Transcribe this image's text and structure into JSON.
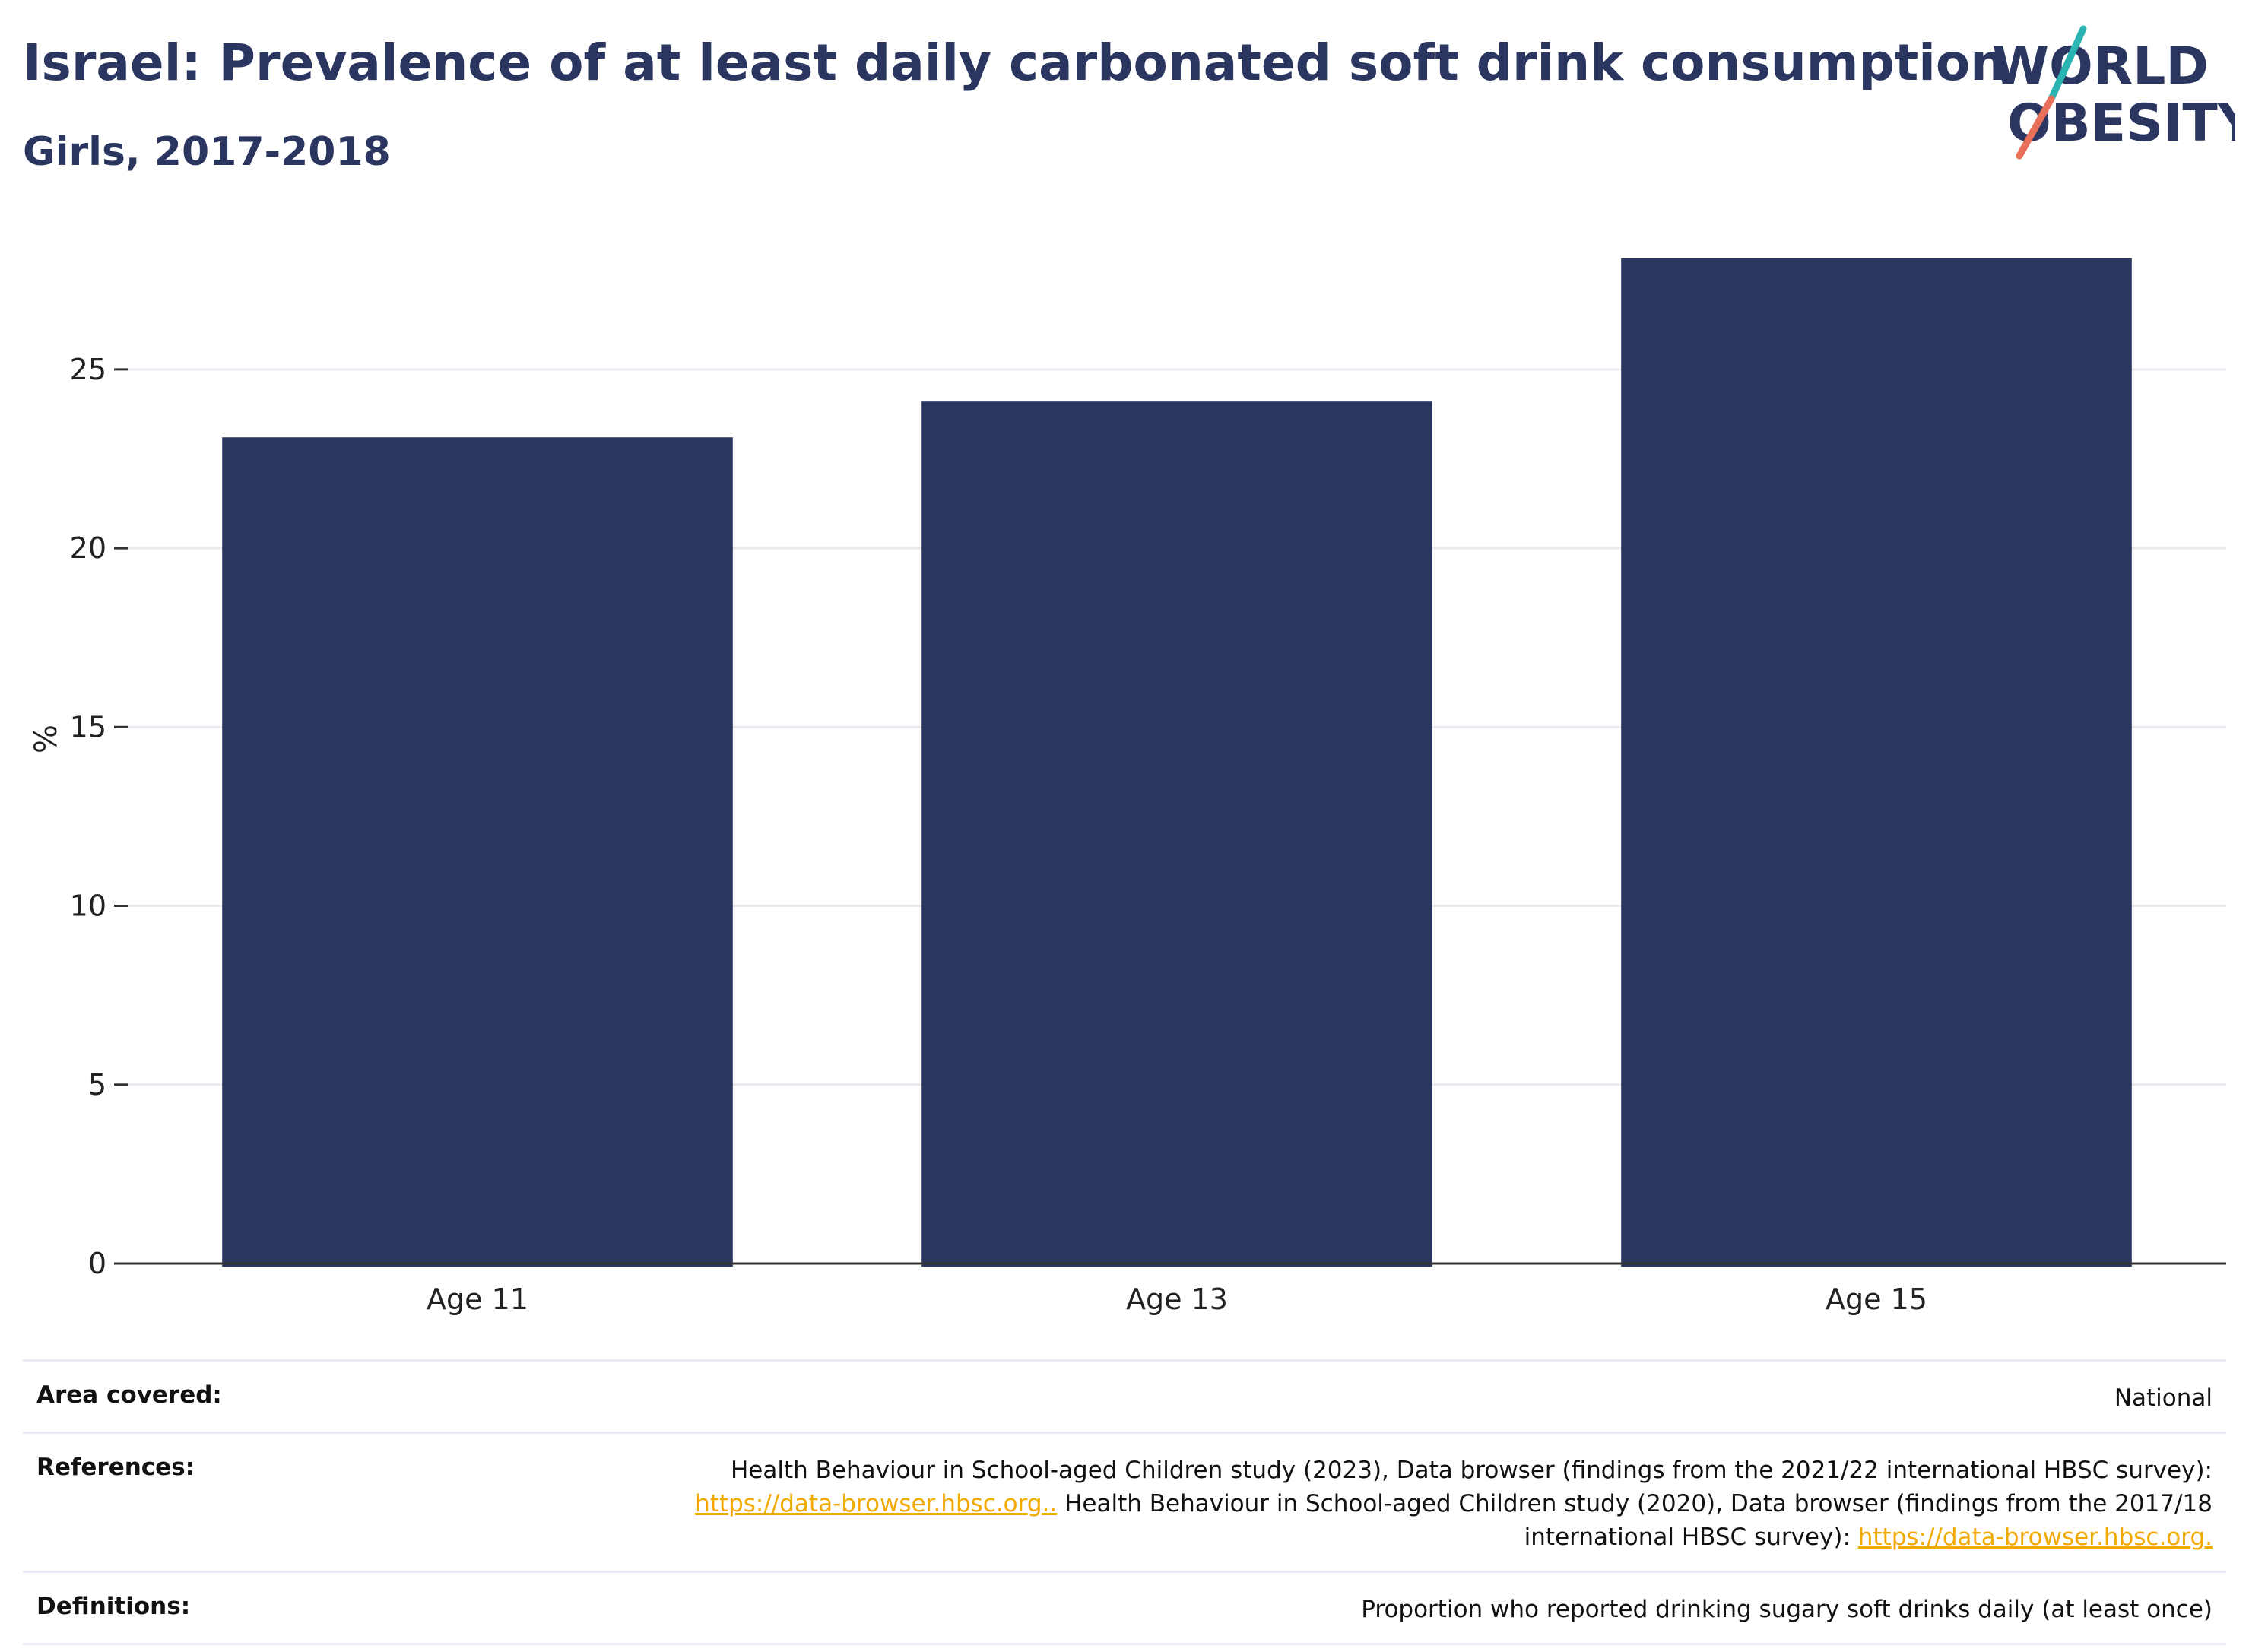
{
  "header": {
    "title": "Israel: Prevalence of at least daily carbonated soft drink consumption",
    "subtitle": "Girls, 2017-2018"
  },
  "logo": {
    "line1": "WORLD",
    "line2": "OBESITY"
  },
  "chart_data": {
    "type": "bar",
    "categories": [
      "Age 11",
      "Age 13",
      "Age 15"
    ],
    "values": [
      23.1,
      24.1,
      28.1
    ],
    "ylabel": "%",
    "ylim": [
      0,
      28.1
    ],
    "yticks": [
      0,
      5,
      10,
      15,
      20,
      25
    ],
    "grid": true,
    "colors": {
      "bar": "#2a3660",
      "grid": "#e8eaf0",
      "axis": "#333333"
    }
  },
  "meta": {
    "area": {
      "label": "Area covered:",
      "value": "National"
    },
    "references": {
      "label": "References:",
      "text1": "Health Behaviour in School-aged Children study (2023), Data browser (findings from the 2021/22 international HBSC survey):",
      "link1": "https://data-browser.hbsc.org..",
      "text2": " Health Behaviour in School-aged Children study (2020), Data browser (findings from the 2017/18 international HBSC survey): ",
      "link2": "https://data-browser.hbsc.org."
    },
    "definitions": {
      "label": "Definitions:",
      "value": "Proportion who reported drinking sugary soft drinks daily (at least once)"
    }
  }
}
